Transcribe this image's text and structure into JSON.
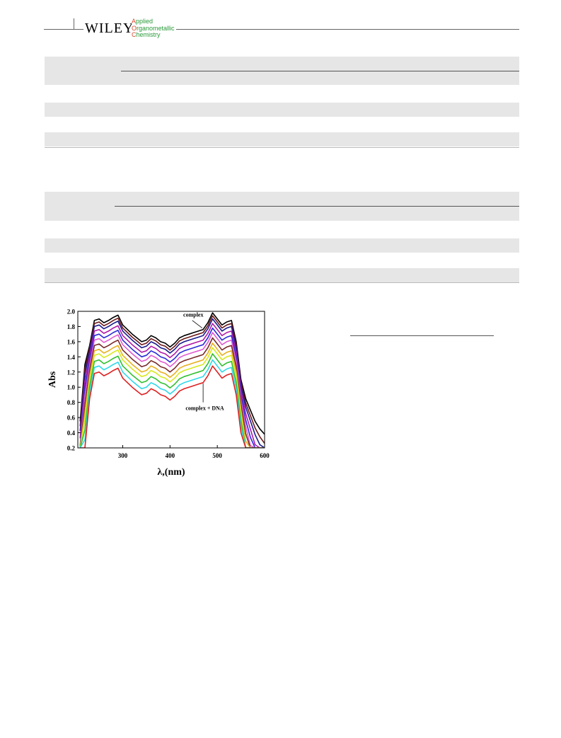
{
  "header": {
    "publisher": "WILEY",
    "journal_lines": [
      {
        "cap": "A",
        "rest": "pplied"
      },
      {
        "cap": "O",
        "rest": "rganometallic"
      },
      {
        "cap": "C",
        "rest": "hemistry"
      }
    ]
  },
  "chart_data": {
    "type": "line",
    "xlabel": "λ,(nm)",
    "ylabel": "Abs",
    "xlim": [
      205,
      600
    ],
    "ylim": [
      0.2,
      2.0
    ],
    "x_ticks": [
      300,
      400,
      500,
      600
    ],
    "y_ticks": [
      "0.2",
      "0.4",
      "0.6",
      "0.8",
      "1.0",
      "1.2",
      "1.4",
      "1.6",
      "1.8",
      "2.0"
    ],
    "grid": false,
    "annotations": [
      "complex",
      "complex + DNA"
    ],
    "x": [
      210,
      220,
      230,
      240,
      250,
      260,
      270,
      280,
      290,
      300,
      310,
      320,
      330,
      340,
      350,
      360,
      370,
      380,
      390,
      400,
      410,
      420,
      430,
      440,
      450,
      460,
      470,
      480,
      490,
      500,
      510,
      520,
      530,
      540,
      550,
      560,
      570,
      580,
      590,
      600
    ],
    "base_curve": [
      0.55,
      1.3,
      1.55,
      1.88,
      1.9,
      1.85,
      1.88,
      1.92,
      1.95,
      1.82,
      1.76,
      1.7,
      1.65,
      1.6,
      1.62,
      1.68,
      1.65,
      1.6,
      1.58,
      1.53,
      1.58,
      1.65,
      1.68,
      1.7,
      1.72,
      1.74,
      1.76,
      1.85,
      1.98,
      1.9,
      1.82,
      1.86,
      1.88,
      1.6,
      1.1,
      0.85,
      0.7,
      0.55,
      0.45,
      0.38
    ],
    "series": [
      {
        "color": "#000000",
        "offset": 0.0
      },
      {
        "color": "#6e1a1a",
        "offset": -0.04
      },
      {
        "color": "#1a1a8c",
        "offset": -0.08
      },
      {
        "color": "#b01aa8",
        "offset": -0.14
      },
      {
        "color": "#2a2ad8",
        "offset": -0.2
      },
      {
        "color": "#e05ad0",
        "offset": -0.26
      },
      {
        "color": "#7a2a2a",
        "offset": -0.33
      },
      {
        "color": "#e8b020",
        "offset": -0.4
      },
      {
        "color": "#d8e820",
        "offset": -0.46
      },
      {
        "color": "#30c030",
        "offset": -0.54
      },
      {
        "color": "#30d8e8",
        "offset": -0.62
      },
      {
        "color": "#e02020",
        "offset": -0.7
      }
    ]
  }
}
